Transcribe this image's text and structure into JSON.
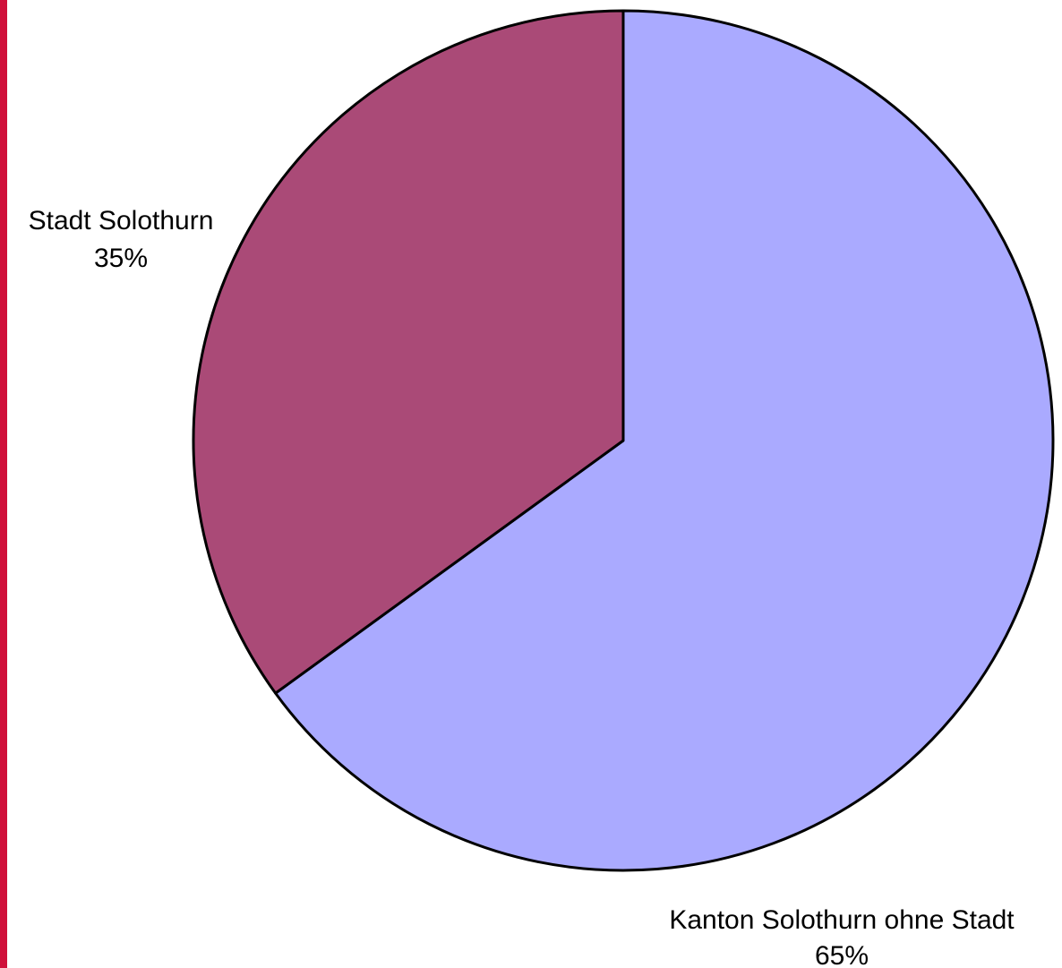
{
  "chart_data": {
    "type": "pie",
    "start_angle_deg": 0,
    "direction": "clockwise",
    "slices": [
      {
        "label": "Kanton Solothurn ohne Stadt",
        "value": 65,
        "value_label": "65%",
        "color": "#aaaaff"
      },
      {
        "label": "Stadt Solothurn",
        "value": 35,
        "value_label": "35%",
        "color": "#aa4a77"
      }
    ],
    "outline_color": "#000000",
    "left_border_color": "#d0103a"
  }
}
